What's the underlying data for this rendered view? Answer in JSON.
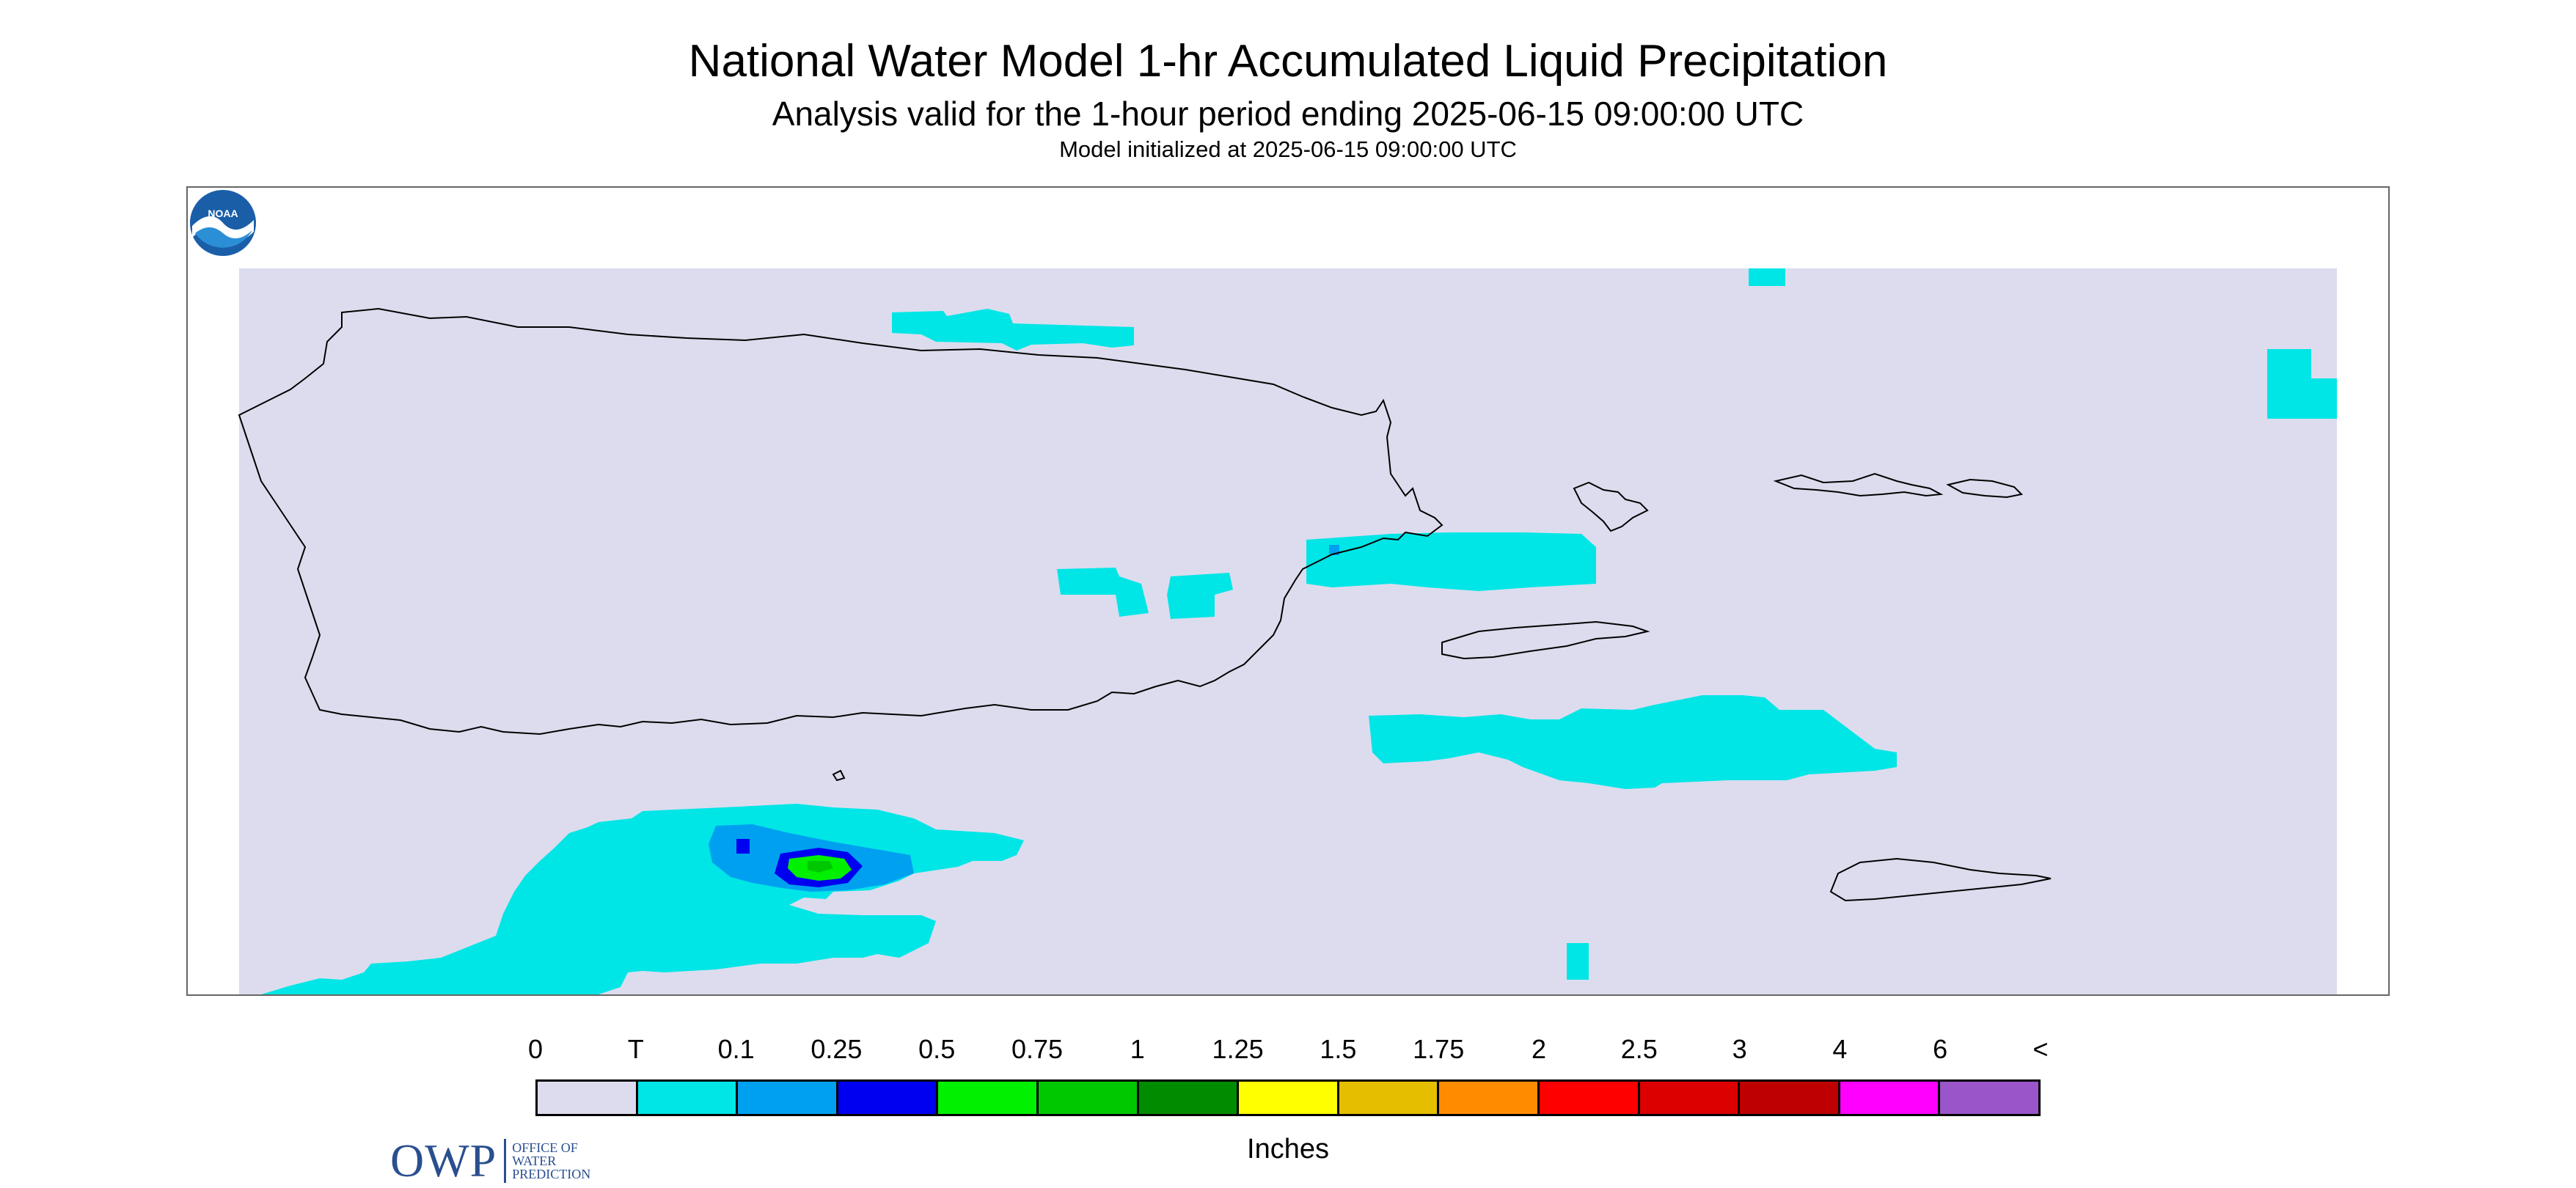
{
  "header": {
    "title": "National Water Model 1-hr Accumulated Liquid Precipitation",
    "subtitle": "Analysis valid for the 1-hour period ending 2025-06-15 09:00:00 UTC",
    "init": "Model initialized at 2025-06-15 09:00:00 UTC"
  },
  "logo": {
    "owp_abbrev": "OWP",
    "owp_line1": "OFFICE OF",
    "owp_line2": "WATER",
    "owp_line3": "PREDICTION",
    "noaa_text": "NOAA"
  },
  "legend": {
    "labels": [
      "0",
      "T",
      "0.1",
      "0.25",
      "0.5",
      "0.75",
      "1",
      "1.25",
      "1.5",
      "1.75",
      "2",
      "2.5",
      "3",
      "4",
      "6",
      "<"
    ],
    "colors": [
      "#dcdcee",
      "#00e6e6",
      "#00a0f0",
      "#0000f0",
      "#00f000",
      "#00c800",
      "#008c00",
      "#ffff00",
      "#e6be00",
      "#ff8c00",
      "#ff0000",
      "#dc0000",
      "#be0000",
      "#ff00ff",
      "#9a55c8"
    ],
    "units": "Inches"
  },
  "map": {
    "background_color": "#dcdcee",
    "trace_color": "#00e6e6",
    "coast_color": "#000000"
  }
}
